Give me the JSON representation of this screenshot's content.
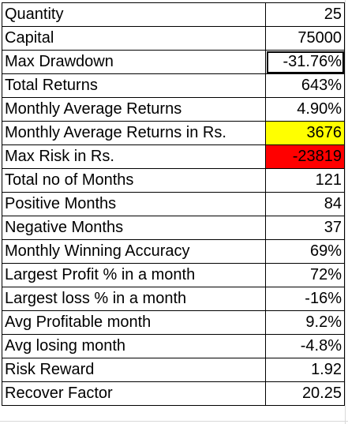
{
  "rows": [
    {
      "label": "Quantity",
      "value": "25",
      "fill": ""
    },
    {
      "label": "Capital",
      "value": "75000",
      "fill": ""
    },
    {
      "label": "Max Drawdown",
      "value": "-31.76%",
      "fill": "",
      "selected": true
    },
    {
      "label": "Total Returns",
      "value": "643%",
      "fill": ""
    },
    {
      "label": "Monthly Average Returns",
      "value": "4.90%",
      "fill": ""
    },
    {
      "label": "Monthly Average Returns in Rs.",
      "value": "3676",
      "fill": "#ffff00"
    },
    {
      "label": "Max Risk in Rs.",
      "value": "-23819",
      "fill": "#ff0000"
    },
    {
      "label": "Total no of Months",
      "value": "121",
      "fill": ""
    },
    {
      "label": "Positive Months",
      "value": "84",
      "fill": ""
    },
    {
      "label": "Negative Months",
      "value": "37",
      "fill": ""
    },
    {
      "label": "Monthly Winning Accuracy",
      "value": "69%",
      "fill": ""
    },
    {
      "label": "Largest Profit % in a month",
      "value": "72%",
      "fill": ""
    },
    {
      "label": "Largest loss % in a month",
      "value": "-16%",
      "fill": ""
    },
    {
      "label": "Avg Profitable month",
      "value": "9.2%",
      "fill": ""
    },
    {
      "label": "Avg losing month",
      "value": "-4.8%",
      "fill": ""
    },
    {
      "label": "Risk Reward",
      "value": "1.92",
      "fill": ""
    },
    {
      "label": "Recover Factor",
      "value": "20.25",
      "fill": ""
    }
  ]
}
